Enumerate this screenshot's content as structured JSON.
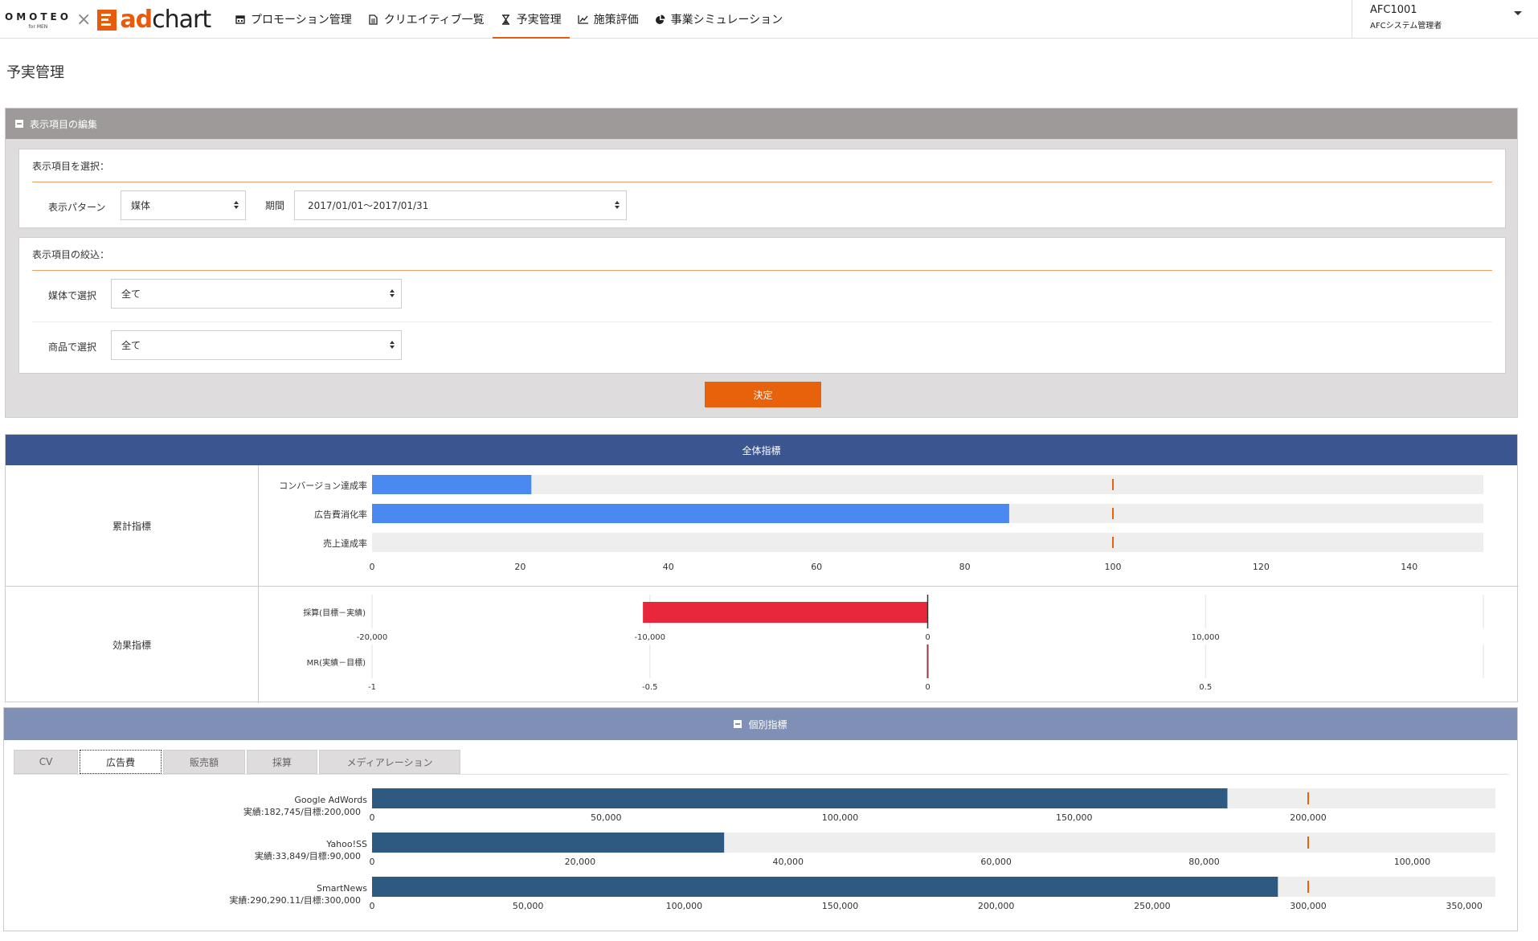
{
  "header": {
    "brand_omoteo": "OMOTEO",
    "brand_formen": "for MEN",
    "brand_x": "×",
    "brand_ad": "ad",
    "brand_chart": "chart",
    "nav": [
      {
        "label": "プロモーション管理",
        "icon": "calendar-icon"
      },
      {
        "label": "クリエイティブ一覧",
        "icon": "document-icon"
      },
      {
        "label": "予実管理",
        "icon": "hourglass-icon",
        "active": true
      },
      {
        "label": "施策評価",
        "icon": "line-chart-icon"
      },
      {
        "label": "事業シミュレーション",
        "icon": "pie-chart-icon"
      }
    ],
    "user": {
      "id": "AFC1001",
      "role": "AFCシステム管理者"
    }
  },
  "page": {
    "title": "予実管理"
  },
  "filter": {
    "header": "表示項目の編集",
    "select_section": {
      "title": "表示項目を選択：",
      "pattern_label": "表示パターン",
      "pattern_value": "媒体",
      "period_label": "期間",
      "period_value": "2017/01/01〜2017/01/31"
    },
    "narrow_section": {
      "title": "表示項目の絞込：",
      "media_label": "媒体で選択",
      "media_value": "全て",
      "product_label": "商品で選択",
      "product_value": "全て"
    },
    "submit_label": "決定"
  },
  "overall": {
    "header": "全体指標",
    "cumulative_label": "累計指標",
    "effect_label": "効果指標"
  },
  "individual": {
    "header": "個別指標",
    "tabs": [
      "CV",
      "広告費",
      "販売額",
      "採算",
      "メディアレーション"
    ],
    "active_tab": 1
  },
  "colors": {
    "accent": "#e8620c",
    "bar_blue": "#4a8af0",
    "bar_red": "#e8273a",
    "bar_navy": "#2e5a82",
    "track": "#eeeeee",
    "target": "#e8620c"
  },
  "chart_data": [
    {
      "type": "bar",
      "orientation": "horizontal",
      "categories": [
        "コンバージョン達成率",
        "広告費消化率",
        "売上達成率"
      ],
      "values": [
        21.5,
        86,
        0
      ],
      "target": 100,
      "xlim": [
        0,
        150
      ],
      "xticks": [
        0,
        20,
        40,
        60,
        80,
        100,
        120,
        140
      ]
    },
    {
      "type": "bar",
      "orientation": "horizontal",
      "categories": [
        "採算(目標－実績)"
      ],
      "values": [
        -10250
      ],
      "xlim": [
        -20000,
        20000
      ],
      "xticks": [
        -20000,
        -10000,
        0,
        10000
      ],
      "xtick_labels": [
        "-20,000",
        "-10,000",
        "0",
        "10,000"
      ]
    },
    {
      "type": "bar",
      "orientation": "horizontal",
      "categories": [
        "MR(実績－目標)"
      ],
      "values": [
        0
      ],
      "xlim": [
        -1,
        1
      ],
      "xticks": [
        -1,
        -0.5,
        0,
        0.5
      ],
      "xtick_labels": [
        "-1",
        "-0.5",
        "0",
        "0.5"
      ]
    },
    {
      "type": "bar",
      "orientation": "horizontal",
      "series": [
        {
          "name": "Google AdWords",
          "sub": "実績:182,745/目標:200,000",
          "value": 182745,
          "target": 200000,
          "xlim": [
            0,
            240000
          ],
          "xticks": [
            0,
            50000,
            100000,
            150000,
            200000
          ],
          "xtick_labels": [
            "0",
            "50,000",
            "100,000",
            "150,000",
            "200,000"
          ]
        },
        {
          "name": "Yahoo!SS",
          "sub": "実績:33,849/目標:90,000",
          "value": 33849,
          "target": 90000,
          "xlim": [
            0,
            108000
          ],
          "xticks": [
            0,
            20000,
            40000,
            60000,
            80000,
            100000
          ],
          "xtick_labels": [
            "0",
            "20,000",
            "40,000",
            "60,000",
            "80,000",
            "100,000"
          ]
        },
        {
          "name": "SmartNews",
          "sub": "実績:290,290.11/目標:300,000",
          "value": 290290.11,
          "target": 300000,
          "xlim": [
            0,
            360000
          ],
          "xticks": [
            0,
            50000,
            100000,
            150000,
            200000,
            250000,
            300000,
            350000
          ],
          "xtick_labels": [
            "0",
            "50,000",
            "100,000",
            "150,000",
            "200,000",
            "250,000",
            "300,000",
            "350,000"
          ]
        }
      ]
    }
  ]
}
